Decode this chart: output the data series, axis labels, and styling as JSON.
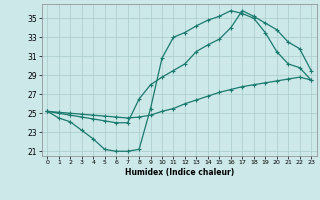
{
  "title": "",
  "xlabel": "Humidex (Indice chaleur)",
  "bg_color": "#cce8e8",
  "line_color": "#1a7a6e",
  "grid_color": "#aacccc",
  "xlim": [
    -0.5,
    23.5
  ],
  "ylim": [
    20.5,
    36.5
  ],
  "xticks": [
    0,
    1,
    2,
    3,
    4,
    5,
    6,
    7,
    8,
    9,
    10,
    11,
    12,
    13,
    14,
    15,
    16,
    17,
    18,
    19,
    20,
    21,
    22,
    23
  ],
  "yticks": [
    21,
    23,
    25,
    27,
    29,
    31,
    33,
    35
  ],
  "line1_x": [
    0,
    1,
    2,
    3,
    4,
    5,
    6,
    7,
    8,
    9,
    10,
    11,
    12,
    13,
    14,
    15,
    16,
    17,
    18,
    19,
    20,
    21,
    22,
    23
  ],
  "line1_y": [
    25.2,
    24.5,
    24.1,
    23.2,
    22.3,
    21.2,
    21.0,
    21.0,
    21.2,
    25.5,
    30.8,
    33.0,
    33.5,
    34.2,
    34.8,
    35.2,
    35.8,
    35.5,
    35.0,
    33.5,
    31.5,
    30.2,
    29.8,
    28.5
  ],
  "line2_x": [
    0,
    1,
    2,
    3,
    4,
    5,
    6,
    7,
    8,
    9,
    10,
    11,
    12,
    13,
    14,
    15,
    16,
    17,
    18,
    19,
    20,
    21,
    22,
    23
  ],
  "line2_y": [
    25.2,
    25.0,
    24.8,
    24.6,
    24.4,
    24.2,
    24.0,
    24.0,
    26.5,
    28.0,
    28.8,
    29.5,
    30.2,
    31.5,
    32.2,
    32.8,
    34.0,
    35.8,
    35.2,
    34.5,
    33.8,
    32.5,
    31.8,
    29.5
  ],
  "line3_x": [
    0,
    1,
    2,
    3,
    4,
    5,
    6,
    7,
    8,
    9,
    10,
    11,
    12,
    13,
    14,
    15,
    16,
    17,
    18,
    19,
    20,
    21,
    22,
    23
  ],
  "line3_y": [
    25.2,
    25.1,
    25.0,
    24.9,
    24.8,
    24.7,
    24.6,
    24.5,
    24.6,
    24.8,
    25.2,
    25.5,
    26.0,
    26.4,
    26.8,
    27.2,
    27.5,
    27.8,
    28.0,
    28.2,
    28.4,
    28.6,
    28.8,
    28.5
  ],
  "marker": "+"
}
